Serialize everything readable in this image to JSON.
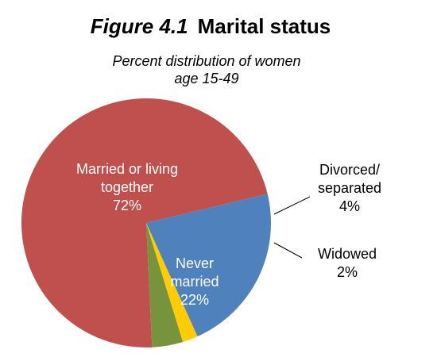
{
  "chart_data": {
    "type": "pie",
    "title_prefix": "Figure 4.1",
    "title": "Marital status",
    "subtitle_lines": [
      "Percent distribution of women",
      "age 15-49"
    ],
    "slices": [
      {
        "label_lines": [
          "Married or living",
          "together"
        ],
        "value": 72,
        "value_label": "72%",
        "color": "#c0504d"
      },
      {
        "label_lines": [
          "Divorced/",
          "separated"
        ],
        "value": 4,
        "value_label": "4%",
        "color": "#77933c"
      },
      {
        "label_lines": [
          "Widowed"
        ],
        "value": 2,
        "value_label": "2%",
        "color": "#ffcc00"
      },
      {
        "label_lines": [
          "Never",
          "married"
        ],
        "value": 22,
        "value_label": "22%",
        "color": "#4f81bd"
      }
    ]
  }
}
